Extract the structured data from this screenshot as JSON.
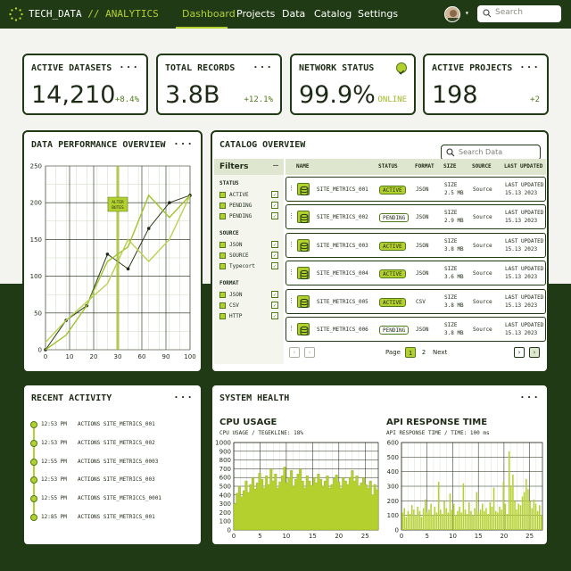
{
  "brand": {
    "name": "TECH_DATA",
    "separator": " // ",
    "sub": "ANALYTICS"
  },
  "nav": {
    "items": [
      "Dashboard",
      "Projects",
      "Data",
      "Catalog",
      "Settings"
    ],
    "active": "Dashboard"
  },
  "search": {
    "placeholder": "Search"
  },
  "metrics": [
    {
      "title": "ACTIVE DATASETS",
      "value": "14,210",
      "delta": "+8.4%"
    },
    {
      "title": "TOTAL RECORDS",
      "value": "3.8B",
      "delta": "+12.1%"
    },
    {
      "title": "NETWORK STATUS",
      "value": "99.9%",
      "delta": "ONLINE"
    },
    {
      "title": "ACTIVE PROJECTS",
      "value": "198",
      "delta": "+2"
    }
  ],
  "performance": {
    "title": "DATA PERFORMANCE OVERVIEW",
    "annotation": [
      "ALTER",
      "BUTES"
    ]
  },
  "catalog": {
    "title": "CATALOG OVERVIEW",
    "search_placeholder": "Search Data",
    "filters": {
      "title": "Filters",
      "groups": [
        {
          "name": "STATUS",
          "items": [
            "ACTIVE",
            "PENDING",
            "PENDING"
          ]
        },
        {
          "name": "SOURCE",
          "items": [
            "JSON",
            "SOURCE",
            "Typecort"
          ]
        },
        {
          "name": "FORMAT",
          "items": [
            "JSON",
            "CSV",
            "HTTP"
          ]
        }
      ]
    },
    "columns": [
      "NAME",
      "STATUS",
      "FORMAT",
      "SIZE",
      "SOURCE",
      "LAST UPDATED"
    ],
    "rows": [
      {
        "name": "SITE_METRICS_001",
        "status": "ACTIVE",
        "format": "JSON",
        "size": [
          "SIZE",
          "2.5 MB"
        ],
        "source": "Source",
        "updated": [
          "LAST UPDATED",
          "15.13 2023"
        ]
      },
      {
        "name": "SITE_METRICS_002",
        "status": "PENDING",
        "format": "JSON",
        "size": [
          "SIZE",
          "2.9 MB"
        ],
        "source": "Source",
        "updated": [
          "LAST UPDATED",
          "15.13 2023"
        ]
      },
      {
        "name": "SITE_METRICS_003",
        "status": "ACTIVE",
        "format": "JSON",
        "size": [
          "SIZE",
          "3.8 MB"
        ],
        "source": "Source",
        "updated": [
          "LAST UPDATED",
          "15.13 2023"
        ]
      },
      {
        "name": "SITE_METRICS_004",
        "status": "ACTIVE",
        "format": "JSON",
        "size": [
          "SIZE",
          "3.6 MB"
        ],
        "source": "Source",
        "updated": [
          "LAST UPDATED",
          "15.13 2023"
        ]
      },
      {
        "name": "SITE_METRICS_005",
        "status": "ACTIVE",
        "format": "CSV",
        "size": [
          "SIZE",
          "3.8 MB"
        ],
        "source": "Source",
        "updated": [
          "LAST UPDATED",
          "15.13 2023"
        ]
      },
      {
        "name": "SITE_METRICS_006",
        "status": "PENDING",
        "format": "JSON",
        "size": [
          "SIZE",
          "3.8 MB"
        ],
        "source": "Source",
        "updated": [
          "LAST UPDATED",
          "15.13 2023"
        ]
      }
    ],
    "pagination": {
      "label": "Page",
      "pages": [
        "1",
        "2"
      ],
      "current": "1",
      "next": "Next"
    }
  },
  "activity": {
    "title": "RECENT ACTIVITY",
    "items": [
      {
        "time": "12:53 PM",
        "text": "ACTIONS SITE_METRICS_001"
      },
      {
        "time": "12:53 PM",
        "text": "ACTIONS SITE_METRICS_002"
      },
      {
        "time": "12:55 PM",
        "text": "ACTIONS SITE_METRICS_0003"
      },
      {
        "time": "12:53 PM",
        "text": "ACTIONS SITE_METRICS_003"
      },
      {
        "time": "12:55 PM",
        "text": "ACTIONS SITE_METRICCS_0001"
      },
      {
        "time": "12:85 PM",
        "text": "ACTIONS SITE_METRICS_001"
      }
    ]
  },
  "health": {
    "title": "SYSTEM HEALTH",
    "cpu": {
      "title": "CPU USAGE",
      "caption": "CPU USAGE / TEGEKLINE: 18%"
    },
    "api": {
      "title": "API RESPONSE TIME",
      "caption": "API RESPONSE TIME / TIME: 100 ms"
    }
  },
  "colors": {
    "dark": "#1f3a14",
    "accent": "#b4d02f",
    "accent_dark": "#4f7a1a",
    "card": "#ffffff",
    "background": "#f3f4ef"
  },
  "chart_data": [
    {
      "type": "line",
      "title": "DATA PERFORMANCE OVERVIEW",
      "x_ticks": [
        0,
        10,
        20,
        30,
        60,
        90,
        100
      ],
      "y_ticks": [
        0,
        50,
        100,
        150,
        200,
        250
      ],
      "ylim": [
        0,
        250
      ],
      "grid": true,
      "series": [
        {
          "values": [
            0,
            40,
            60,
            130,
            110,
            165,
            200,
            210
          ]
        },
        {
          "values": [
            0,
            20,
            60,
            120,
            140,
            210,
            180,
            210
          ]
        },
        {
          "values": [
            10,
            40,
            65,
            90,
            150,
            120,
            150,
            210
          ]
        }
      ],
      "point_positions": [
        0,
        1,
        2,
        3,
        4,
        5,
        6,
        7
      ]
    },
    {
      "type": "area",
      "title": "CPU USAGE",
      "x_ticks": [
        0,
        5,
        10,
        15,
        20,
        25
      ],
      "y_ticks": [
        0,
        100,
        200,
        300,
        400,
        500,
        600,
        700,
        800,
        900,
        1000
      ],
      "ylim": [
        0,
        1000
      ],
      "grid": true,
      "values": [
        300,
        420,
        500,
        380,
        450,
        560,
        430,
        520,
        600,
        470,
        540,
        650,
        580,
        480,
        620,
        520,
        700,
        560,
        640,
        480,
        550,
        620,
        720,
        540,
        600,
        680,
        500,
        580,
        640,
        700,
        560,
        480,
        620,
        560,
        510,
        600,
        540,
        640,
        580,
        500,
        560,
        620,
        480,
        520,
        590,
        630,
        550,
        480,
        600,
        560,
        520,
        600,
        680,
        560,
        620,
        500,
        540,
        600,
        520,
        480,
        560,
        400,
        520,
        460
      ]
    },
    {
      "type": "bar",
      "title": "API RESPONSE TIME",
      "x_ticks": [
        0,
        5,
        10,
        15,
        20,
        25
      ],
      "y_ticks": [
        0,
        100,
        200,
        300,
        400,
        500,
        600
      ],
      "ylim": [
        0,
        600
      ],
      "grid": true,
      "values": [
        120,
        150,
        90,
        130,
        110,
        170,
        140,
        100,
        160,
        130,
        90,
        150,
        210,
        120,
        140,
        180,
        100,
        160,
        120,
        330,
        140,
        110,
        200,
        150,
        120,
        250,
        140,
        180,
        100,
        130,
        160,
        120,
        320,
        140,
        110,
        190,
        130,
        100,
        150,
        260,
        120,
        140,
        180,
        130,
        150,
        110,
        190,
        160,
        290,
        130,
        120,
        160,
        140,
        330,
        180,
        110,
        540,
        300,
        380,
        200,
        140,
        180,
        170,
        230,
        260,
        350,
        280,
        200,
        150,
        210,
        180,
        130,
        170,
        100
      ]
    }
  ]
}
